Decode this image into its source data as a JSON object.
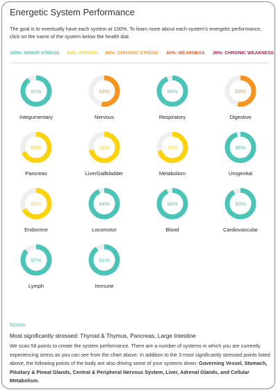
{
  "header": {
    "title": "Energetic System Performance",
    "intro": "The goal is to eventually have each system at 100%. To learn more about each system's energetic performance, click on the name of the system below the health dial."
  },
  "legend": [
    {
      "label": "100%: MINOR STRESS",
      "color": "#4bc4b8"
    },
    {
      "label": "80%: STRESS",
      "color": "#fcd20b"
    },
    {
      "label": "60%: CHRONIC STRESS",
      "color": "#f7941d"
    },
    {
      "label": "40%: WEAKNESS",
      "color": "#e8501c"
    },
    {
      "label": "20%: CHRONIC WEAKNESS",
      "color": "#a51a4b"
    }
  ],
  "systems": [
    {
      "name": "Integumentary",
      "value": 91,
      "value_label": "91%",
      "color": "#4bc4b8"
    },
    {
      "name": "Nervous",
      "value": 53,
      "value_label": "53%",
      "color": "#f7941d"
    },
    {
      "name": "Respiratory",
      "value": 94,
      "value_label": "94%",
      "color": "#4bc4b8"
    },
    {
      "name": "Digestive",
      "value": 53,
      "value_label": "53%",
      "color": "#f7941d"
    },
    {
      "name": "Pancreas",
      "value": 69,
      "value_label": "69%",
      "color": "#fcd20b"
    },
    {
      "name": "LiverGallbladder",
      "value": 72,
      "value_label": "72%",
      "color": "#fcd20b"
    },
    {
      "name": "Metabolism",
      "value": 71,
      "value_label": "71%",
      "color": "#fcd20b"
    },
    {
      "name": "Urogenital",
      "value": 96,
      "value_label": "96%",
      "color": "#4bc4b8"
    },
    {
      "name": "Endocrine",
      "value": 68,
      "value_label": "68%",
      "color": "#fcd20b"
    },
    {
      "name": "Locomotor",
      "value": 94,
      "value_label": "94%",
      "color": "#4bc4b8"
    },
    {
      "name": "Blood",
      "value": 94,
      "value_label": "94%",
      "color": "#4bc4b8"
    },
    {
      "name": "Cardiovascular",
      "value": 92,
      "value_label": "92%",
      "color": "#4bc4b8"
    },
    {
      "name": "Lymph",
      "value": 87,
      "value_label": "87%",
      "color": "#4bc4b8"
    },
    {
      "name": "Immune",
      "value": 91,
      "value_label": "91%",
      "color": "#4bc4b8"
    }
  ],
  "notes": {
    "heading": "Notes",
    "subheading": "Most significantly stressed: Thyroid & Thymus, Pancreas, Large Intestine",
    "body": "We scan 58 points to create the system performance. There are a number of systems in which you are currently experiencing stress as you can see from the chart above. In addition to the 3 most significantly stressed points listed above, the following points of the body are also driving some of your systems down: ",
    "body_bold": "Governing Vessel, Stomach, Pituitary & Pineal Glands, Central & Peripheral Nervous System, Liver, Adrenal Glands, and Cellular Metabolism."
  }
}
